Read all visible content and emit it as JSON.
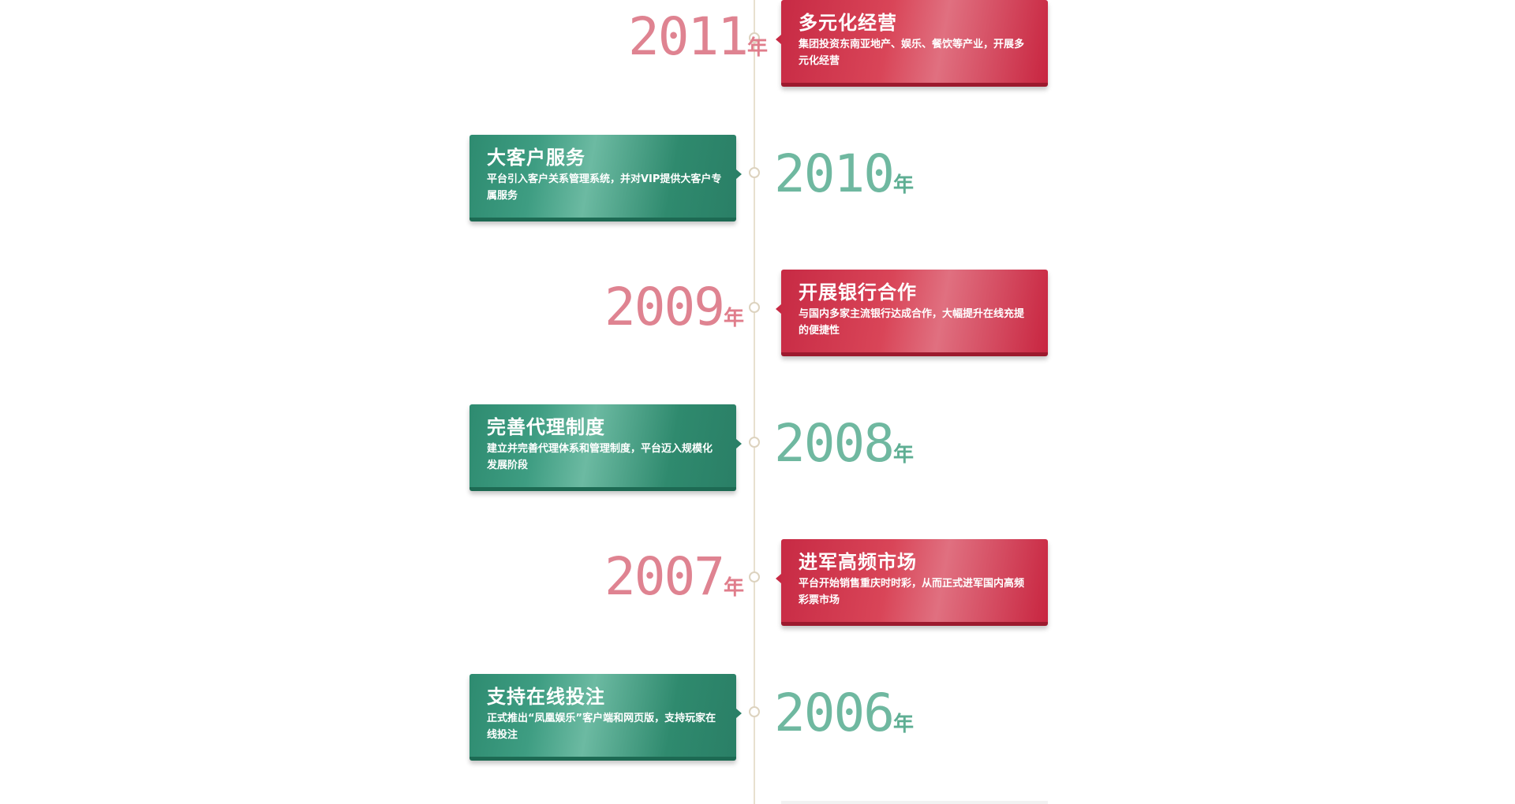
{
  "year_suffix": "年",
  "events": [
    {
      "year": "2011",
      "title": "多元化经营",
      "desc": "集团投资东南亚地产、娱乐、餐饮等产业，开展多元化经营",
      "side": "right",
      "color": "red"
    },
    {
      "year": "2010",
      "title": "大客户服务",
      "desc": "平台引入客户关系管理系统，并对VIP提供大客户专属服务",
      "side": "left",
      "color": "green"
    },
    {
      "year": "2009",
      "title": "开展银行合作",
      "desc": "与国内多家主流银行达成合作，大幅提升在线充提的便捷性",
      "side": "right",
      "color": "red"
    },
    {
      "year": "2008",
      "title": "完善代理制度",
      "desc": "建立并完善代理体系和管理制度，平台迈入规模化发展阶段",
      "side": "left",
      "color": "green"
    },
    {
      "year": "2007",
      "title": "进军高频市场",
      "desc": "平台开始销售重庆时时彩，从而正式进军国内高频彩票市场",
      "side": "right",
      "color": "red"
    },
    {
      "year": "2006",
      "title": "支持在线投注",
      "desc": "正式推出“凤凰娱乐”客户端和网页版，支持玩家在线投注",
      "side": "left",
      "color": "green"
    }
  ],
  "colors": {
    "red_accent": "#c72a44",
    "green_accent": "#2e8b70",
    "line": "#e8e0cf"
  }
}
